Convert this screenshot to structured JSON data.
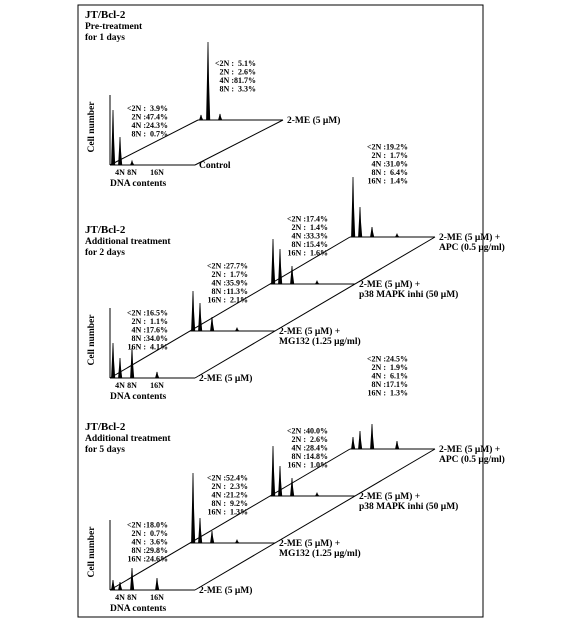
{
  "panels": [
    {
      "title": "JT/Bcl-2",
      "subtitle": [
        "Pre-treatment",
        "for 1 days"
      ],
      "y_label": "Cell number",
      "x_label": "DNA contents",
      "x_ticks": [
        "4N",
        "8N",
        "16N"
      ],
      "traces": [
        {
          "label": [
            "Control"
          ],
          "stats": [
            [
              "<2N :",
              "3.9%"
            ],
            [
              "2N :",
              "47.4%"
            ],
            [
              "4N :",
              "24.3%"
            ],
            [
              "8N :",
              "0.7%"
            ]
          ]
        },
        {
          "label": [
            "2-ME (5 μM)"
          ],
          "stats": [
            [
              "<2N :",
              "5.1%"
            ],
            [
              "2N :",
              "2.6%"
            ],
            [
              "4N :",
              "81.7%"
            ],
            [
              "8N :",
              "3.3%"
            ]
          ]
        }
      ]
    },
    {
      "title": "JT/Bcl-2",
      "subtitle": [
        "Additional treatment",
        "for 2 days"
      ],
      "y_label": "Cell number",
      "x_label": "DNA contents",
      "x_ticks": [
        "4N",
        "8N",
        "16N"
      ],
      "traces": [
        {
          "label": [
            "2-ME (5 μM)"
          ],
          "stats": [
            [
              "<2N :",
              "16.5%"
            ],
            [
              "2N :",
              "1.1%"
            ],
            [
              "4N :",
              "17.6%"
            ],
            [
              "8N :",
              "34.0%"
            ],
            [
              "16N :",
              "4.1%"
            ]
          ]
        },
        {
          "label": [
            "2-ME (5 μM) +",
            "MG132 (1.25 μg/ml)"
          ],
          "stats": [
            [
              "<2N :",
              "27.7%"
            ],
            [
              "2N :",
              "1.7%"
            ],
            [
              "4N :",
              "35.9%"
            ],
            [
              "8N :",
              "11.3%"
            ],
            [
              "16N :",
              "2.1%"
            ]
          ]
        },
        {
          "label": [
            "2-ME (5 μM) +",
            "p38 MAPK inhi (50 μM)"
          ],
          "stats": [
            [
              "<2N :",
              "17.4%"
            ],
            [
              "2N :",
              "1.4%"
            ],
            [
              "4N :",
              "33.3%"
            ],
            [
              "8N :",
              "15.4%"
            ],
            [
              "16N :",
              "1.6%"
            ]
          ]
        },
        {
          "label": [
            "2-ME (5 μM) +",
            "APC (0.5 μg/ml)"
          ],
          "stats": [
            [
              "<2N :",
              "19.2%"
            ],
            [
              "2N :",
              "1.7%"
            ],
            [
              "4N :",
              "31.0%"
            ],
            [
              "8N :",
              "6.4%"
            ],
            [
              "16N :",
              "1.4%"
            ]
          ]
        }
      ]
    },
    {
      "title": "JT/Bcl-2",
      "subtitle": [
        "Additional treatment",
        "for 5 days"
      ],
      "y_label": "Cell number",
      "x_label": "DNA contents",
      "x_ticks": [
        "4N",
        "8N",
        "16N"
      ],
      "traces": [
        {
          "label": [
            "2-ME (5 μM)"
          ],
          "stats": [
            [
              "<2N :",
              "18.0%"
            ],
            [
              "2N :",
              "0.7%"
            ],
            [
              "4N :",
              "3.6%"
            ],
            [
              "8N :",
              "29.8%"
            ],
            [
              "16N :",
              "24.6%"
            ]
          ]
        },
        {
          "label": [
            "2-ME (5 μM) +",
            "MG132 (1.25 μg/ml)"
          ],
          "stats": [
            [
              "<2N :",
              "52.4%"
            ],
            [
              "2N :",
              "2.3%"
            ],
            [
              "4N :",
              "21.2%"
            ],
            [
              "8N :",
              "9.2%"
            ],
            [
              "16N :",
              "1.3%"
            ]
          ]
        },
        {
          "label": [
            "2-ME (5 μM) +",
            "p38 MAPK inhi (50 μM)"
          ],
          "stats": [
            [
              "<2N :",
              "40.0%"
            ],
            [
              "2N :",
              "2.6%"
            ],
            [
              "4N :",
              "28.4%"
            ],
            [
              "8N :",
              "14.8%"
            ],
            [
              "16N :",
              "1.0%"
            ]
          ]
        },
        {
          "label": [
            "2-ME (5 μM) +",
            "APC (0.5 μg/ml)"
          ],
          "stats": [
            [
              "<2N :",
              "24.5%"
            ],
            [
              "2N :",
              "1.9%"
            ],
            [
              "4N :",
              "6.1%"
            ],
            [
              "8N :",
              "17.1%"
            ],
            [
              "16N :",
              "1.3%"
            ]
          ]
        }
      ]
    }
  ]
}
